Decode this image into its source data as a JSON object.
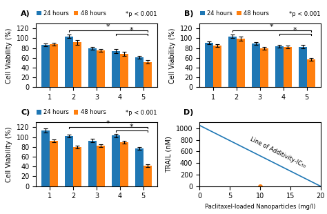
{
  "chart_data": [
    {
      "type": "bar",
      "title": "A)",
      "categories": [
        "1",
        "2",
        "3",
        "4",
        "5"
      ],
      "series": [
        {
          "name": "24 hours",
          "values": [
            87,
            104,
            80,
            74,
            61
          ],
          "errors": [
            3,
            4,
            3,
            4,
            3
          ]
        },
        {
          "name": "48 hours",
          "values": [
            88,
            92,
            75,
            68,
            52
          ],
          "errors": [
            3,
            5,
            3,
            4,
            3
          ]
        }
      ],
      "ylabel": "Cell Viability (%)",
      "ylim": [
        0,
        130
      ],
      "yticks": [
        0,
        20,
        40,
        60,
        80,
        100,
        120
      ],
      "legend": "lower left",
      "annotations": [
        {
          "text": "*p < 0.001"
        },
        {
          "text": "*",
          "from": "2",
          "to": "5",
          "y": 116
        },
        {
          "text": "*",
          "from": "4",
          "to": "5",
          "y": 109
        }
      ]
    },
    {
      "type": "bar",
      "title": "B)",
      "categories": [
        "1",
        "2",
        "3",
        "4",
        "5"
      ],
      "series": [
        {
          "name": "24 hours",
          "values": [
            91,
            104,
            89,
            84,
            83
          ],
          "errors": [
            3,
            3,
            3,
            3,
            3
          ]
        },
        {
          "name": "48 hours",
          "values": [
            85,
            99,
            79,
            82,
            57
          ],
          "errors": [
            3,
            4,
            3,
            3,
            3
          ]
        }
      ],
      "ylabel": "Cell Viability (%)",
      "ylim": [
        0,
        130
      ],
      "yticks": [
        0,
        20,
        40,
        60,
        80,
        100,
        120
      ],
      "legend": "lower left",
      "annotations": [
        {
          "text": "*p < 0.001"
        },
        {
          "text": "*",
          "from": "2",
          "to": "5",
          "y": 116
        },
        {
          "text": "*",
          "from": "4",
          "to": "5",
          "y": 109
        }
      ]
    },
    {
      "type": "bar",
      "title": "C)",
      "categories": [
        "1",
        "2",
        "3",
        "4",
        "5"
      ],
      "series": [
        {
          "name": "24 hours",
          "values": [
            114,
            102,
            93,
            103,
            77
          ],
          "errors": [
            4,
            3,
            3,
            3,
            3
          ]
        },
        {
          "name": "48 hours",
          "values": [
            92,
            80,
            83,
            90,
            42
          ],
          "errors": [
            3,
            3,
            3,
            3,
            3
          ]
        }
      ],
      "ylabel": "Cell Viability (%)",
      "ylim": [
        0,
        130
      ],
      "yticks": [
        0,
        20,
        40,
        60,
        80,
        100,
        120
      ],
      "legend": "lower left",
      "annotations": [
        {
          "text": "*p < 0.001"
        },
        {
          "text": "*",
          "from": "2",
          "to": "5",
          "y": 121
        },
        {
          "text": "*",
          "from": "4",
          "to": "5",
          "y": 113
        }
      ]
    },
    {
      "type": "line",
      "title": "D)",
      "xlabel": "Paclitaxel-loaded Nanoparticles (mg/l)",
      "ylabel": "TRAIL (nM)",
      "xlim": [
        0,
        20
      ],
      "ylim": [
        0,
        1100
      ],
      "xticks": [
        0,
        5,
        10,
        15,
        20
      ],
      "yticks": [
        0,
        200,
        400,
        600,
        800,
        1000
      ],
      "series": [
        {
          "type": "line",
          "x": [
            0,
            20
          ],
          "values": [
            1050,
            0
          ]
        },
        {
          "type": "scatter",
          "x": [
            10
          ],
          "values": [
            0
          ],
          "marker": "o"
        }
      ],
      "annotations": [
        {
          "text": "Line of Additivity-IC₅₀",
          "x": 13,
          "y": 580
        }
      ]
    }
  ]
}
